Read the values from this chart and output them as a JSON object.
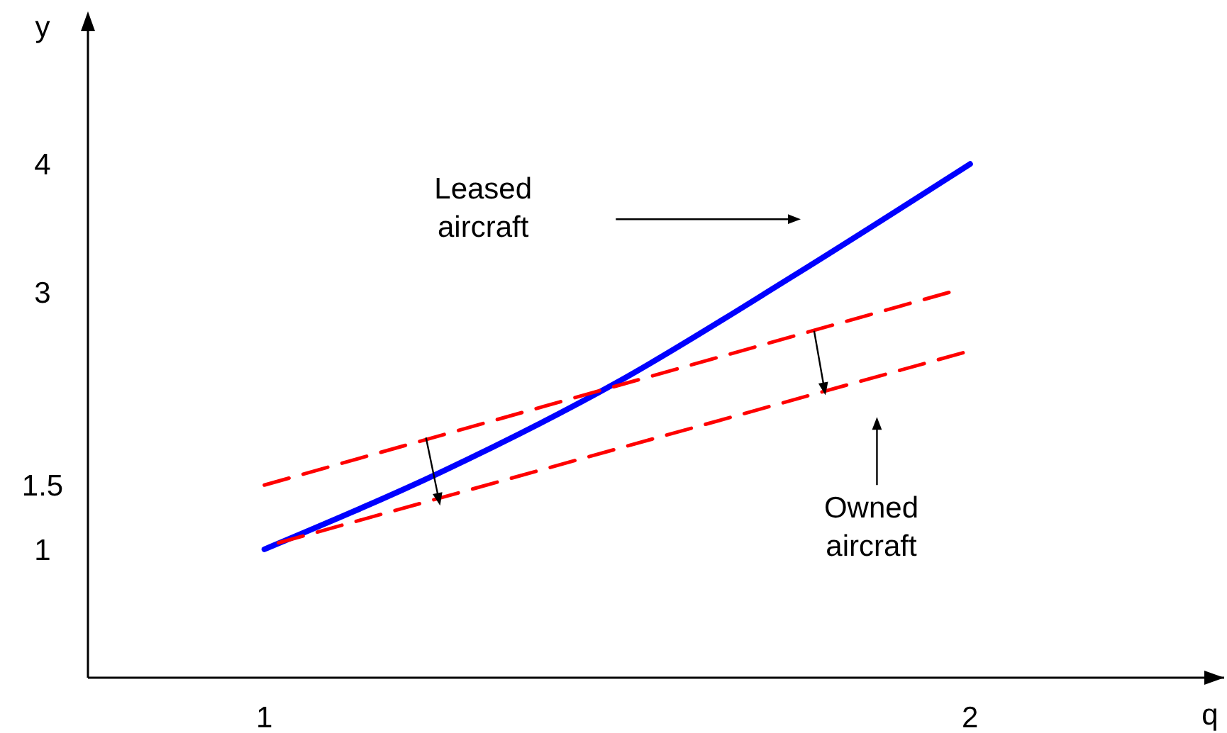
{
  "chart_data": {
    "type": "line",
    "xlabel": "q",
    "ylabel": "y",
    "xlim": [
      0.75,
      2.36
    ],
    "ylim": [
      0,
      5.1
    ],
    "xticks": [
      1,
      2
    ],
    "yticks": [
      1,
      1.5,
      3,
      4
    ],
    "grid": false,
    "marker": "none",
    "series": [
      {
        "color": "#0000ff",
        "line_style": "solid",
        "x": [
          1,
          1.25,
          1.5,
          1.75,
          2
        ],
        "values": [
          1,
          1.6,
          2.3,
          3.13,
          4
        ]
      },
      {
        "color": "#ff0000",
        "line_style": "dashed",
        "x": [
          1,
          1.97
        ],
        "values": [
          1.5,
          3.0
        ]
      },
      {
        "color": "#ff0000",
        "line_style": "dashed",
        "x": [
          1.02,
          1.99
        ],
        "values": [
          1.05,
          2.53
        ]
      }
    ],
    "annotations": [
      "Leased aircraft",
      "Owned aircraft"
    ]
  }
}
